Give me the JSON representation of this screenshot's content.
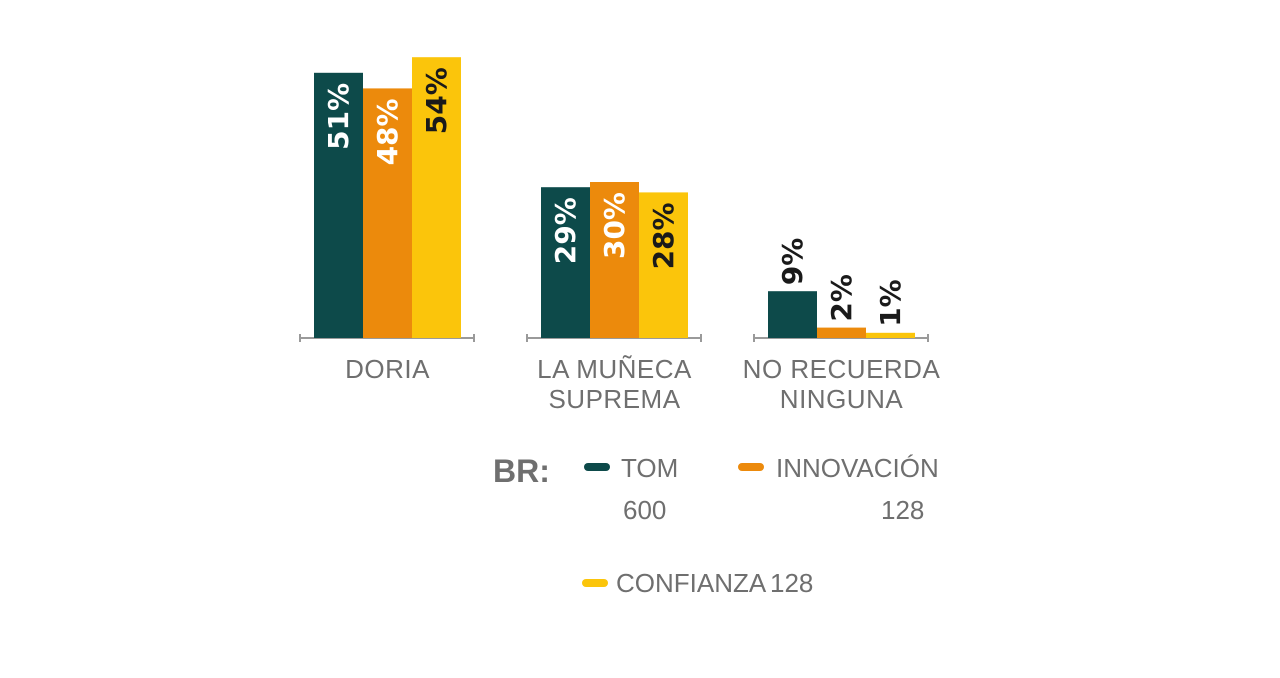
{
  "colors": {
    "tom": "#0d4a4a",
    "innovacion": "#ec8a0c",
    "confianza": "#fbc50b",
    "axis": "#9a9a9a",
    "text": "#6f6f6f"
  },
  "chart_data": {
    "type": "bar",
    "categories": [
      {
        "lines": [
          "DORIA"
        ]
      },
      {
        "lines": [
          "LA MUÑECA",
          "SUPREMA"
        ]
      },
      {
        "lines": [
          "NO RECUERDA",
          "NINGUNA"
        ]
      }
    ],
    "series": [
      {
        "name": "TOM",
        "key": "tom",
        "values": [
          51,
          29,
          9
        ],
        "labels": [
          "51%",
          "29%",
          "9%"
        ]
      },
      {
        "name": "INNOVACIÓN",
        "key": "innovacion",
        "values": [
          48,
          30,
          2
        ],
        "labels": [
          "48%",
          "30%",
          "2%"
        ]
      },
      {
        "name": "CONFIANZA",
        "key": "confianza",
        "values": [
          54,
          28,
          1
        ],
        "labels": [
          "54%",
          "28%",
          "1%"
        ]
      }
    ],
    "ylim": [
      0,
      54
    ],
    "grid": false,
    "legend_placement": "bottom"
  },
  "legend": {
    "title": "BR:",
    "items": [
      {
        "key": "tom",
        "label": "TOM",
        "base": "600"
      },
      {
        "key": "innovacion",
        "label": "INNOVACIÓN",
        "base": "128"
      },
      {
        "key": "confianza",
        "label": "CONFIANZA",
        "base": "128"
      }
    ]
  }
}
